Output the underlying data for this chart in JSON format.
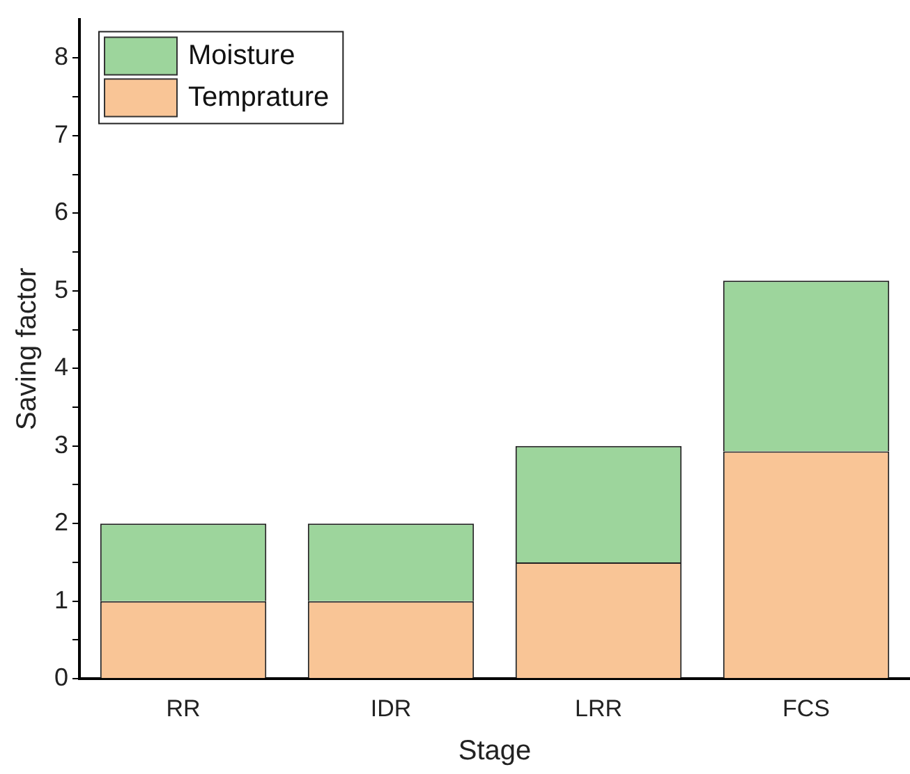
{
  "chart_data": {
    "type": "bar",
    "stacked": true,
    "xlabel": "Stage",
    "ylabel": "Saving factor",
    "categories": [
      "RR",
      "IDR",
      "LRR",
      "FCS"
    ],
    "series": [
      {
        "name": "Temprature",
        "color": "#f9c596",
        "values": [
          1,
          1,
          1.5,
          2.93
        ]
      },
      {
        "name": "Moisture",
        "color": "#9dd59c",
        "values": [
          1,
          1,
          1.5,
          2.2
        ]
      }
    ],
    "ylim": [
      0,
      8.5
    ],
    "yticks": [
      0,
      {
        "value": 0.5,
        "label": null
      },
      1,
      {
        "value": 1.5,
        "label": null
      },
      2,
      {
        "value": 2.5,
        "label": null
      },
      3,
      {
        "value": 3.5,
        "label": null
      },
      4,
      {
        "value": 4.5,
        "label": null
      },
      5,
      {
        "value": 5.5,
        "label": null
      },
      6,
      {
        "value": 6.5,
        "label": null
      },
      7,
      {
        "value": 7.5,
        "label": null
      },
      8
    ],
    "grid": false,
    "legend": "top left"
  }
}
